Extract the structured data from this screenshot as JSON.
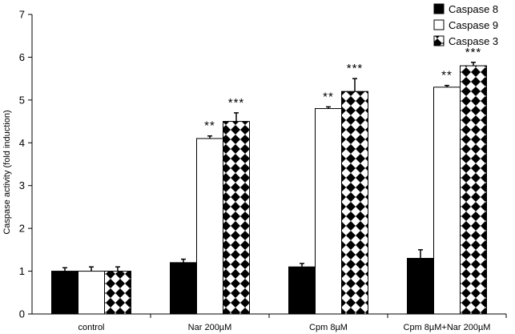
{
  "chart_data": {
    "type": "bar",
    "title": "",
    "xlabel": "",
    "ylabel": "Caspase activity (fold induction)",
    "ylim": [
      0,
      7
    ],
    "yticks": [
      0,
      1,
      2,
      3,
      4,
      5,
      6,
      7
    ],
    "categories": [
      "control",
      "Nar 200µM",
      "Cpm 8µM",
      "Cpm 8µM+Nar 200µM"
    ],
    "series": [
      {
        "name": "Caspase 8",
        "values": [
          1.0,
          1.2,
          1.1,
          1.3
        ],
        "errors": [
          0.08,
          0.08,
          0.08,
          0.2
        ],
        "significance": [
          "",
          "",
          "",
          ""
        ],
        "fill": "solid",
        "color": "#000000"
      },
      {
        "name": "Caspase 9",
        "values": [
          1.0,
          4.1,
          4.8,
          5.3
        ],
        "errors": [
          0.1,
          0.06,
          0.04,
          0.04
        ],
        "significance": [
          "",
          "**",
          "**",
          "**"
        ],
        "fill": "white",
        "color": "#ffffff"
      },
      {
        "name": "Caspase 3",
        "values": [
          1.0,
          4.5,
          5.2,
          5.8
        ],
        "errors": [
          0.1,
          0.2,
          0.3,
          0.08
        ],
        "significance": [
          "",
          "***",
          "***",
          "***"
        ],
        "fill": "checker",
        "color": "#000000"
      }
    ],
    "legend_position": "top-right",
    "grid": false
  }
}
